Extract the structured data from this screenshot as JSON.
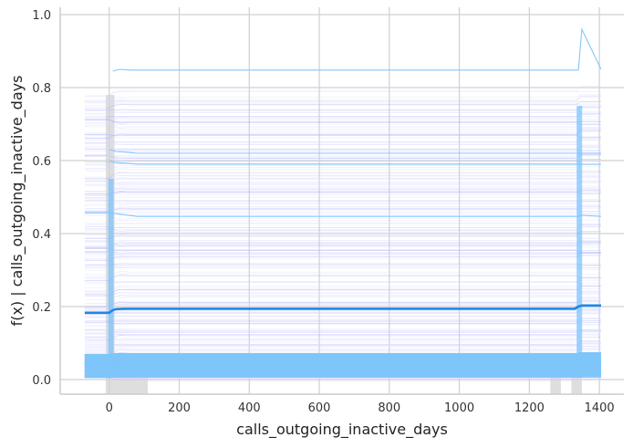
{
  "chart_data": {
    "type": "line",
    "title": "",
    "xlabel": "calls_outgoing_inactive_days",
    "ylabel": "f(x) | calls_outgoing_inactive_days",
    "xlim": [
      -140,
      1470
    ],
    "ylim": [
      -0.04,
      1.02
    ],
    "x_ticks": [
      0,
      200,
      400,
      600,
      800,
      1000,
      1200,
      1400
    ],
    "y_ticks": [
      0.0,
      0.2,
      0.4,
      0.6,
      0.8,
      1.0
    ],
    "x_tick_labels": [
      "0",
      "200",
      "400",
      "600",
      "800",
      "1000",
      "1200",
      "1400"
    ],
    "y_tick_labels": [
      "0.0",
      "0.2",
      "0.4",
      "0.6",
      "0.8",
      "1.0"
    ],
    "grid": true,
    "legend": "none",
    "colors": {
      "mean_line": "#1e88e5",
      "ice_light": "#d7d7ff",
      "ice_medium": "#9aa7f5",
      "ice_blue": "#7dc4fa",
      "histogram": "#d3d3d3",
      "grid": "#d0d0d0",
      "spine": "#cccccc"
    },
    "average_curve": {
      "x": [
        -70,
        0,
        10,
        20,
        40,
        60,
        100,
        400,
        800,
        1200,
        1330,
        1340,
        1350,
        1405
      ],
      "y": [
        0.183,
        0.183,
        0.19,
        0.193,
        0.194,
        0.194,
        0.194,
        0.194,
        0.194,
        0.194,
        0.194,
        0.2,
        0.203,
        0.203
      ]
    },
    "highlight_curves": [
      {
        "x": [
          10,
          30,
          60,
          80,
          1340,
          1350,
          1405
        ],
        "y": [
          0.845,
          0.85,
          0.848,
          0.848,
          0.848,
          0.96,
          0.85
        ]
      },
      {
        "x": [
          -70,
          0,
          20,
          40,
          80,
          1340,
          1350,
          1405
        ],
        "y": [
          0.457,
          0.457,
          0.455,
          0.452,
          0.447,
          0.447,
          0.45,
          0.447
        ]
      },
      {
        "x": [
          0,
          20,
          60,
          80,
          1340,
          1405
        ],
        "y": [
          0.6,
          0.595,
          0.592,
          0.59,
          0.59,
          0.59
        ]
      },
      {
        "x": [
          0,
          20,
          60,
          80,
          1340,
          1405
        ],
        "y": [
          0.63,
          0.625,
          0.622,
          0.62,
          0.62,
          0.62
        ]
      }
    ],
    "ice_band": {
      "x_start": -70,
      "x_end": 1405,
      "y_min": 0.005,
      "y_max": 0.78,
      "dense_y_max": 0.07
    },
    "histogram": {
      "bins": [
        {
          "x0": -10,
          "x1": 15,
          "height": 0.78
        },
        {
          "x0": 15,
          "x1": 50,
          "height": 0.06
        },
        {
          "x0": 50,
          "x1": 80,
          "height": 0.025
        },
        {
          "x0": 80,
          "x1": 110,
          "height": 0.008
        },
        {
          "x0": 1260,
          "x1": 1290,
          "height": 0.02
        },
        {
          "x0": 1320,
          "x1": 1350,
          "height": 0.05
        }
      ]
    }
  }
}
